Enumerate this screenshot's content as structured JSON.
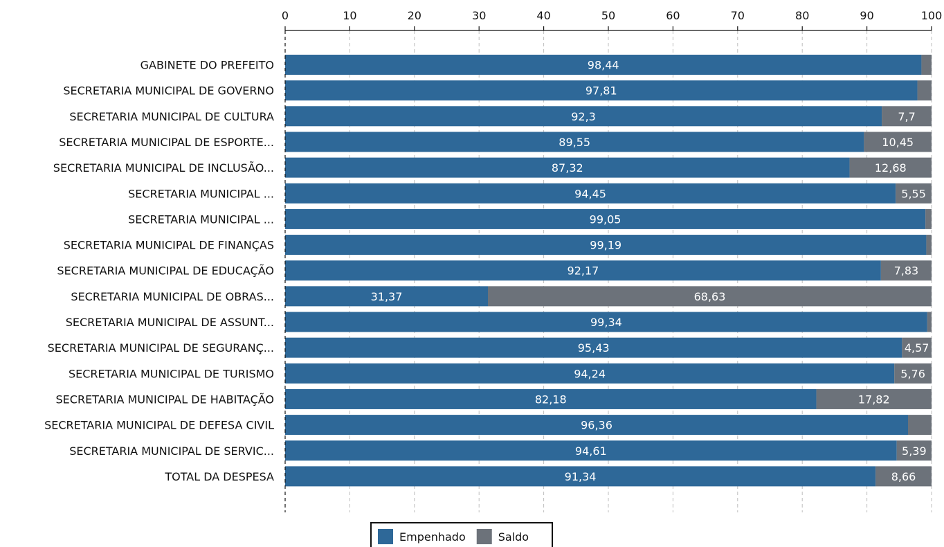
{
  "chart_data": {
    "type": "bar",
    "orientation": "horizontal",
    "stacked": true,
    "x_axis_position": "top",
    "xlim": [
      0,
      100
    ],
    "xticks": [
      0,
      10,
      20,
      30,
      40,
      50,
      60,
      70,
      80,
      90,
      100
    ],
    "grid": true,
    "legend_position": "bottom-center",
    "categories": [
      "GABINETE DO PREFEITO",
      "SECRETARIA MUNICIPAL DE GOVERNO",
      "SECRETARIA MUNICIPAL DE CULTURA",
      "SECRETARIA MUNICIPAL DE ESPORTE...",
      "SECRETARIA MUNICIPAL DE INCLUSÃO...",
      "SECRETARIA MUNICIPAL ...",
      "SECRETARIA MUNICIPAL ...",
      "SECRETARIA MUNICIPAL DE FINANÇAS",
      "SECRETARIA MUNICIPAL DE EDUCAÇÃO",
      "SECRETARIA MUNICIPAL DE OBRAS...",
      "SECRETARIA MUNICIPAL DE ASSUNT...",
      "SECRETARIA MUNICIPAL DE SEGURANÇ...",
      "SECRETARIA MUNICIPAL DE TURISMO",
      "SECRETARIA MUNICIPAL DE HABITAÇÃO",
      "SECRETARIA MUNICIPAL DE DEFESA CIVIL",
      "SECRETARIA MUNICIPAL DE SERVIC...",
      "TOTAL DA DESPESA"
    ],
    "series": [
      {
        "name": "Empenhado",
        "color": "#2e6898",
        "values": [
          98.44,
          97.81,
          92.3,
          89.55,
          87.32,
          94.45,
          99.05,
          99.19,
          92.17,
          31.37,
          99.34,
          95.43,
          94.24,
          82.18,
          96.36,
          94.61,
          91.34
        ],
        "labels": [
          "98,44",
          "97,81",
          "92,3",
          "89,55",
          "87,32",
          "94,45",
          "99,05",
          "99,19",
          "92,17",
          "31,37",
          "99,34",
          "95,43",
          "94,24",
          "82,18",
          "96,36",
          "94,61",
          "91,34"
        ]
      },
      {
        "name": "Saldo",
        "color": "#6c727a",
        "values": [
          1.56,
          2.19,
          7.7,
          10.45,
          12.68,
          5.55,
          0.95,
          0.81,
          7.83,
          68.63,
          0.66,
          4.57,
          5.76,
          17.82,
          3.64,
          5.39,
          8.66
        ],
        "labels": [
          "",
          "",
          "7,7",
          "10,45",
          "12,68",
          "5,55",
          "",
          "",
          "7,83",
          "68,63",
          "",
          "4,57",
          "5,76",
          "17,82",
          "",
          "5,39",
          "8,66"
        ]
      }
    ]
  }
}
